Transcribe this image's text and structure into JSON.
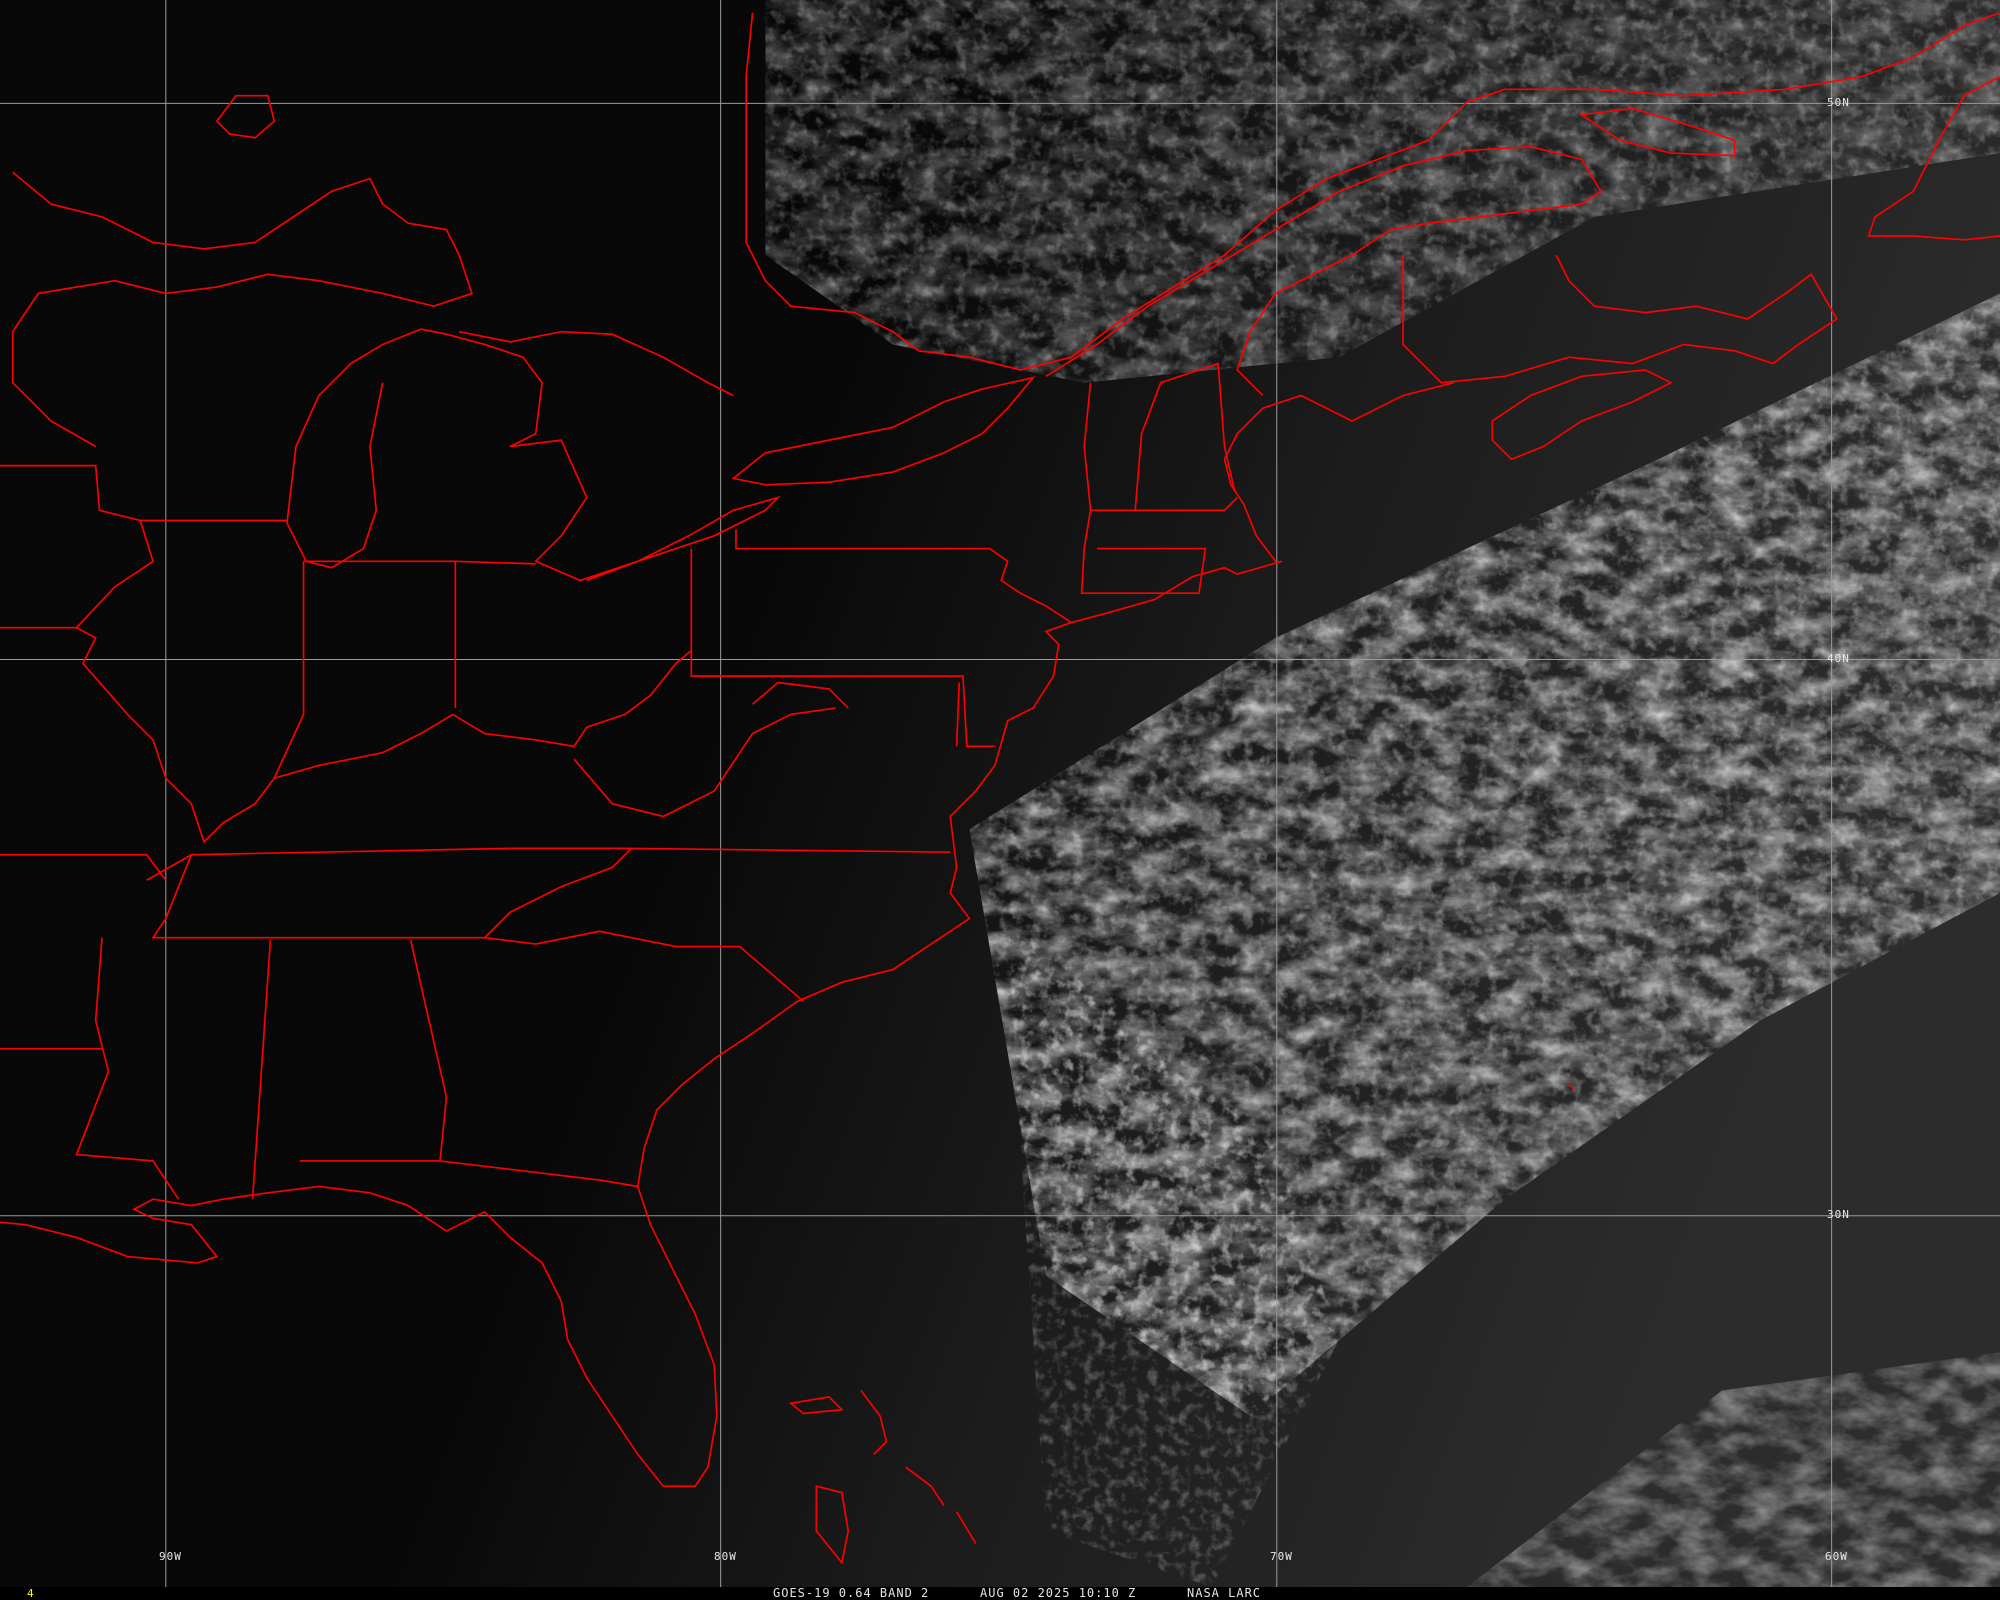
{
  "image": {
    "type": "satellite-visible-imagery",
    "border_color": "#ff0000",
    "grid_color": "#9a9a9a"
  },
  "grid": {
    "longitude_labels": [
      "90W",
      "80W",
      "70W",
      "60W"
    ],
    "latitude_labels": [
      "50N",
      "40N",
      "30N"
    ]
  },
  "caption": {
    "satellite": "GOES-19 0.64 BAND 2",
    "datetime": "AUG 02 2025 10:10 Z",
    "source": "NASA LARC",
    "frame_number": "4",
    "frame_number_color": "#ffff00"
  }
}
